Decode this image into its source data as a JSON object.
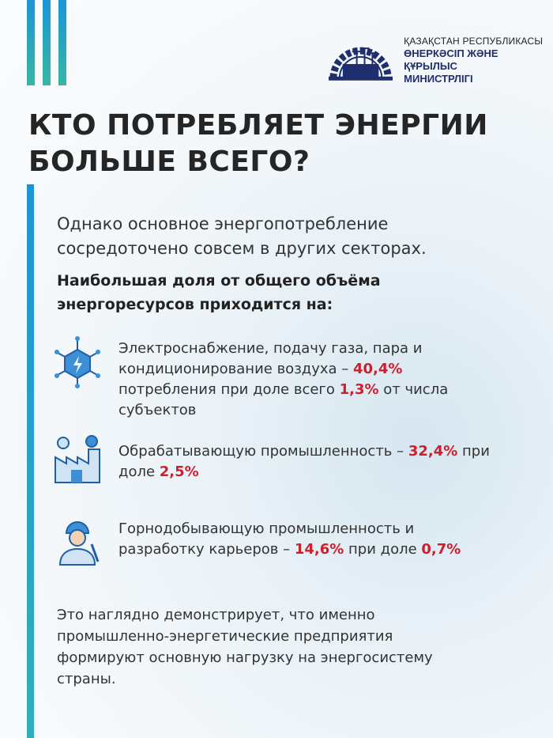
{
  "logo": {
    "line1": "ҚАЗАҚСТАН РЕСПУБЛИКАСЫ",
    "line2": "ӨНЕРКӘСІП ЖӘНЕ ҚҰРЫЛЫС",
    "line3": "МИНИСТРЛІГІ"
  },
  "title": {
    "line1": "КТО ПОТРЕБЛЯЕТ ЭНЕРГИИ",
    "line2": "БОЛЬШЕ ВСЕГО?"
  },
  "intro": {
    "line1": "Однако основное энергопотребление",
    "line2": "сосредоточено совсем в других секторах."
  },
  "lead": {
    "line1": "Наибольшая доля от общего объёма",
    "line2": "энергоресурсов приходится на:"
  },
  "items": [
    {
      "icon": "energy-hexagon-icon",
      "a": "Электроснабжение, подачу газа, пара и кондиционирование воздуха – ",
      "v1": "40,4%",
      "b": " потребления при доле всего ",
      "v2": "1,3%",
      "c": " от числа субъектов"
    },
    {
      "icon": "factory-icon",
      "a": "Обрабатывающую промышленность – ",
      "v1": "32,4%",
      "b": " при доле ",
      "v2": "2,5%",
      "c": ""
    },
    {
      "icon": "miner-icon",
      "a": "Горнодобывающую промышленность и разработку карьеров – ",
      "v1": "14,6%",
      "b": " при доле ",
      "v2": "0,7%",
      "c": ""
    }
  ],
  "outro": "Это наглядно демонстрирует, что именно промышленно-энергетические предприятия формируют основную нагрузку на энергосистему страны.",
  "colors": {
    "accent": "#1c95d8",
    "highlight": "#cf1f2e",
    "brand": "#1f2e6e"
  }
}
